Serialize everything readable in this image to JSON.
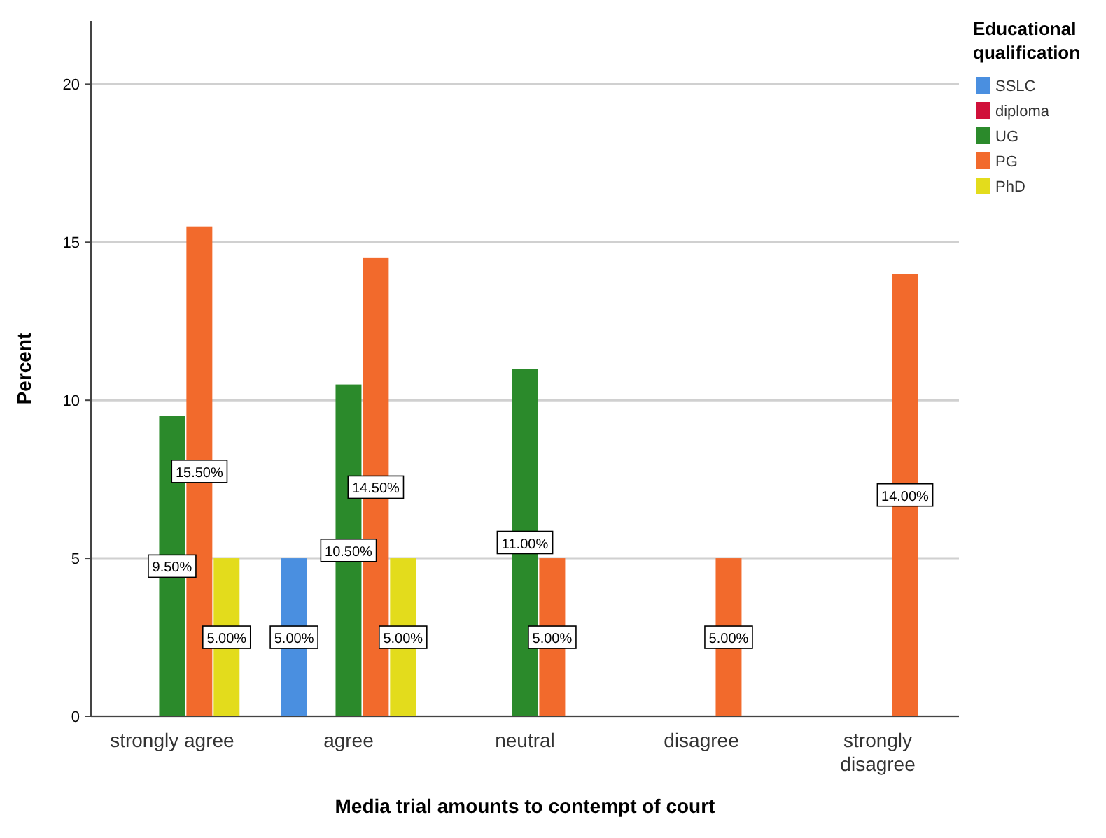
{
  "chart_data": {
    "type": "bar",
    "xlabel": "Media trial amounts to contempt of court",
    "ylabel": "Percent",
    "legend_title": "Educational qualification",
    "legend": "top right",
    "grid": "y",
    "ylim": [
      0,
      22
    ],
    "yticks": [
      0,
      5,
      10,
      15,
      20
    ],
    "categories": [
      "strongly agree",
      "agree",
      "neutral",
      "disagree",
      "strongly disagree"
    ],
    "series": [
      {
        "name": "SSLC",
        "color": "#4a8fe0",
        "values": [
          null,
          5,
          null,
          null,
          null
        ],
        "value_labels": [
          null,
          "5.00%",
          null,
          null,
          null
        ]
      },
      {
        "name": "diploma",
        "color": "#d0103a",
        "values": [
          null,
          null,
          null,
          null,
          null
        ],
        "value_labels": [
          null,
          null,
          null,
          null,
          null
        ]
      },
      {
        "name": "UG",
        "color": "#2b8a2b",
        "values": [
          9.5,
          10.5,
          11,
          null,
          null
        ],
        "value_labels": [
          "9.50%",
          "10.50%",
          "11.00%",
          null,
          null
        ]
      },
      {
        "name": "PG",
        "color": "#f26a2c",
        "values": [
          15.5,
          14.5,
          5,
          5,
          14
        ],
        "value_labels": [
          "15.50%",
          "14.50%",
          "5.00%",
          "5.00%",
          "14.00%"
        ]
      },
      {
        "name": "PhD",
        "color": "#e3dc1c",
        "values": [
          5,
          5,
          null,
          null,
          null
        ],
        "value_labels": [
          "5.00%",
          "5.00%",
          null,
          null,
          null
        ]
      }
    ]
  }
}
